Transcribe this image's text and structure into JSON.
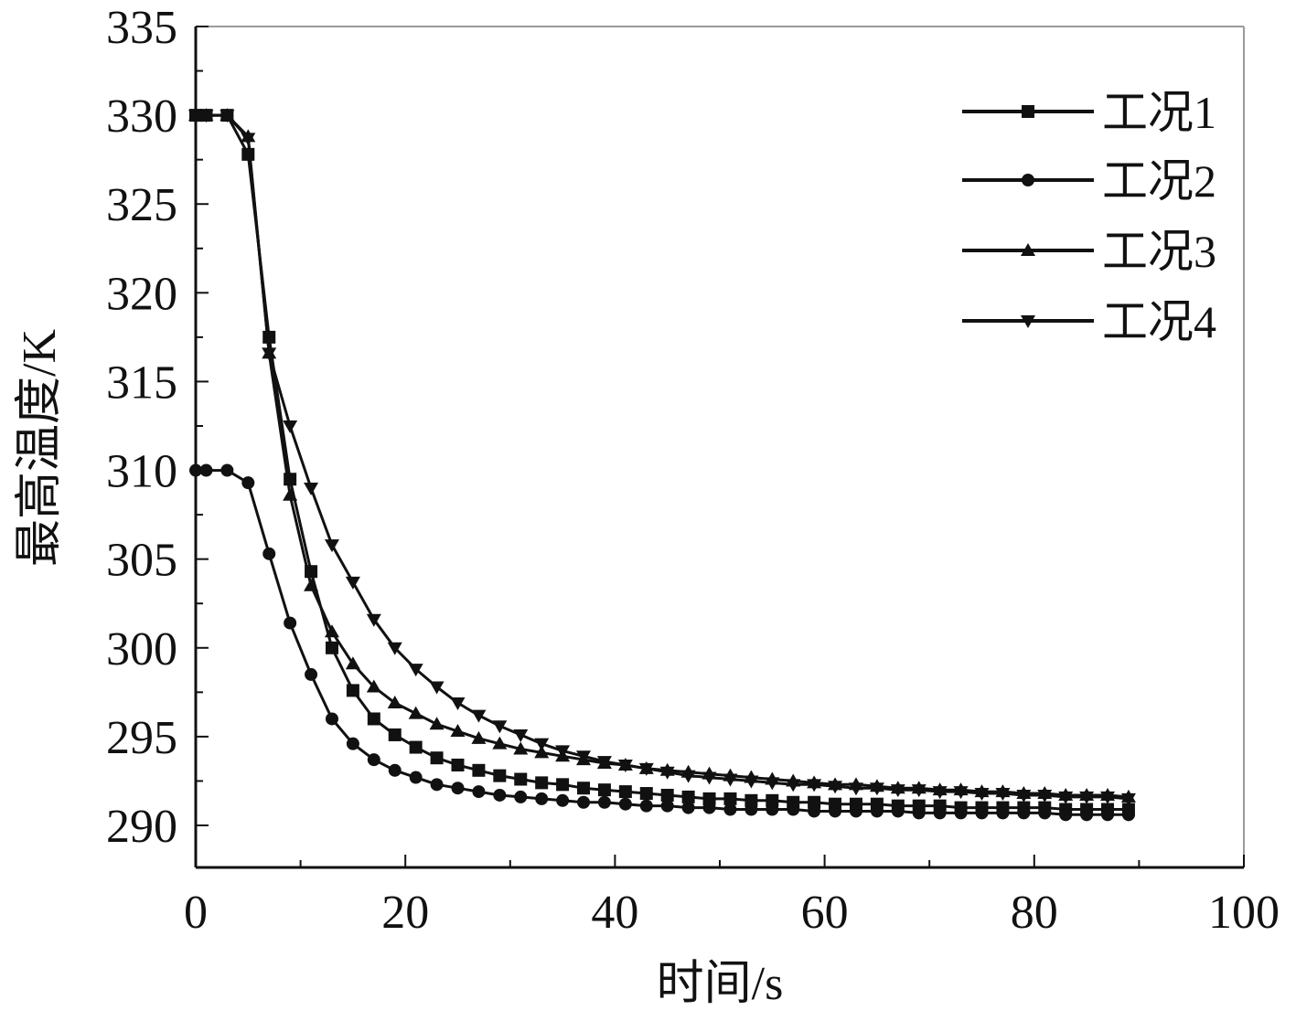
{
  "chart_data": {
    "type": "line",
    "title": "",
    "xlabel": "时间/s",
    "ylabel": "最高温度/K",
    "xlim": [
      0,
      100
    ],
    "ylim": [
      288,
      335
    ],
    "xticks": [
      0,
      20,
      40,
      60,
      80,
      100
    ],
    "xtick_labels": [
      "0",
      "20",
      "40",
      "60",
      "80",
      "100"
    ],
    "yticks": [
      290,
      295,
      300,
      305,
      310,
      315,
      320,
      325,
      330,
      335
    ],
    "ytick_labels": [
      "290",
      "295",
      "300",
      "305",
      "310",
      "315",
      "320",
      "325",
      "330",
      "335"
    ],
    "grid": false,
    "legend_position": "top-right",
    "x": [
      0,
      1,
      3,
      5,
      7,
      9,
      11,
      13,
      15,
      17,
      19,
      21,
      23,
      25,
      27,
      29,
      31,
      33,
      35,
      37,
      39,
      41,
      43,
      45,
      47,
      49,
      51,
      53,
      55,
      57,
      59,
      61,
      63,
      65,
      67,
      69,
      71,
      73,
      75,
      77,
      79,
      81,
      83,
      85,
      87,
      89
    ],
    "series": [
      {
        "name": "工况1",
        "marker": "square",
        "values": [
          330.0,
          330.0,
          330.0,
          327.8,
          317.5,
          309.5,
          304.3,
          300.0,
          297.6,
          296.0,
          295.1,
          294.4,
          293.8,
          293.4,
          293.1,
          292.8,
          292.6,
          292.4,
          292.3,
          292.1,
          292.0,
          291.9,
          291.8,
          291.7,
          291.6,
          291.5,
          291.5,
          291.4,
          291.4,
          291.3,
          291.3,
          291.2,
          291.2,
          291.2,
          291.1,
          291.1,
          291.1,
          291.0,
          291.0,
          291.0,
          291.0,
          291.0,
          290.9,
          290.9,
          290.9,
          290.9
        ]
      },
      {
        "name": "工况2",
        "marker": "circle",
        "values": [
          310.0,
          310.0,
          310.0,
          309.3,
          305.3,
          301.4,
          298.5,
          296.0,
          294.6,
          293.7,
          293.1,
          292.7,
          292.3,
          292.1,
          291.9,
          291.7,
          291.6,
          291.5,
          291.4,
          291.3,
          291.3,
          291.2,
          291.1,
          291.1,
          291.0,
          291.0,
          290.9,
          290.9,
          290.9,
          290.9,
          290.8,
          290.8,
          290.8,
          290.8,
          290.8,
          290.7,
          290.7,
          290.7,
          290.7,
          290.7,
          290.7,
          290.7,
          290.6,
          290.6,
          290.6,
          290.6
        ]
      },
      {
        "name": "工况3",
        "marker": "triangle-up",
        "values": [
          330.0,
          330.0,
          330.0,
          328.8,
          316.6,
          308.6,
          303.5,
          300.9,
          299.1,
          297.8,
          296.9,
          296.3,
          295.7,
          295.3,
          294.9,
          294.6,
          294.3,
          294.1,
          293.9,
          293.7,
          293.5,
          293.4,
          293.2,
          293.1,
          293.0,
          292.9,
          292.8,
          292.7,
          292.6,
          292.5,
          292.4,
          292.3,
          292.3,
          292.2,
          292.1,
          292.1,
          292.0,
          292.0,
          291.9,
          291.9,
          291.8,
          291.8,
          291.7,
          291.7,
          291.7,
          291.6
        ]
      },
      {
        "name": "工况4",
        "marker": "triangle-down",
        "values": [
          330.0,
          330.0,
          330.0,
          328.7,
          316.6,
          312.5,
          309.0,
          305.8,
          303.7,
          301.6,
          300.0,
          298.8,
          297.8,
          296.9,
          296.2,
          295.6,
          295.1,
          294.6,
          294.2,
          293.9,
          293.6,
          293.4,
          293.2,
          293.0,
          292.8,
          292.7,
          292.6,
          292.5,
          292.4,
          292.3,
          292.3,
          292.2,
          292.1,
          292.1,
          292.0,
          292.0,
          291.9,
          291.9,
          291.8,
          291.8,
          291.7,
          291.7,
          291.6,
          291.6,
          291.6,
          291.5
        ]
      }
    ]
  }
}
